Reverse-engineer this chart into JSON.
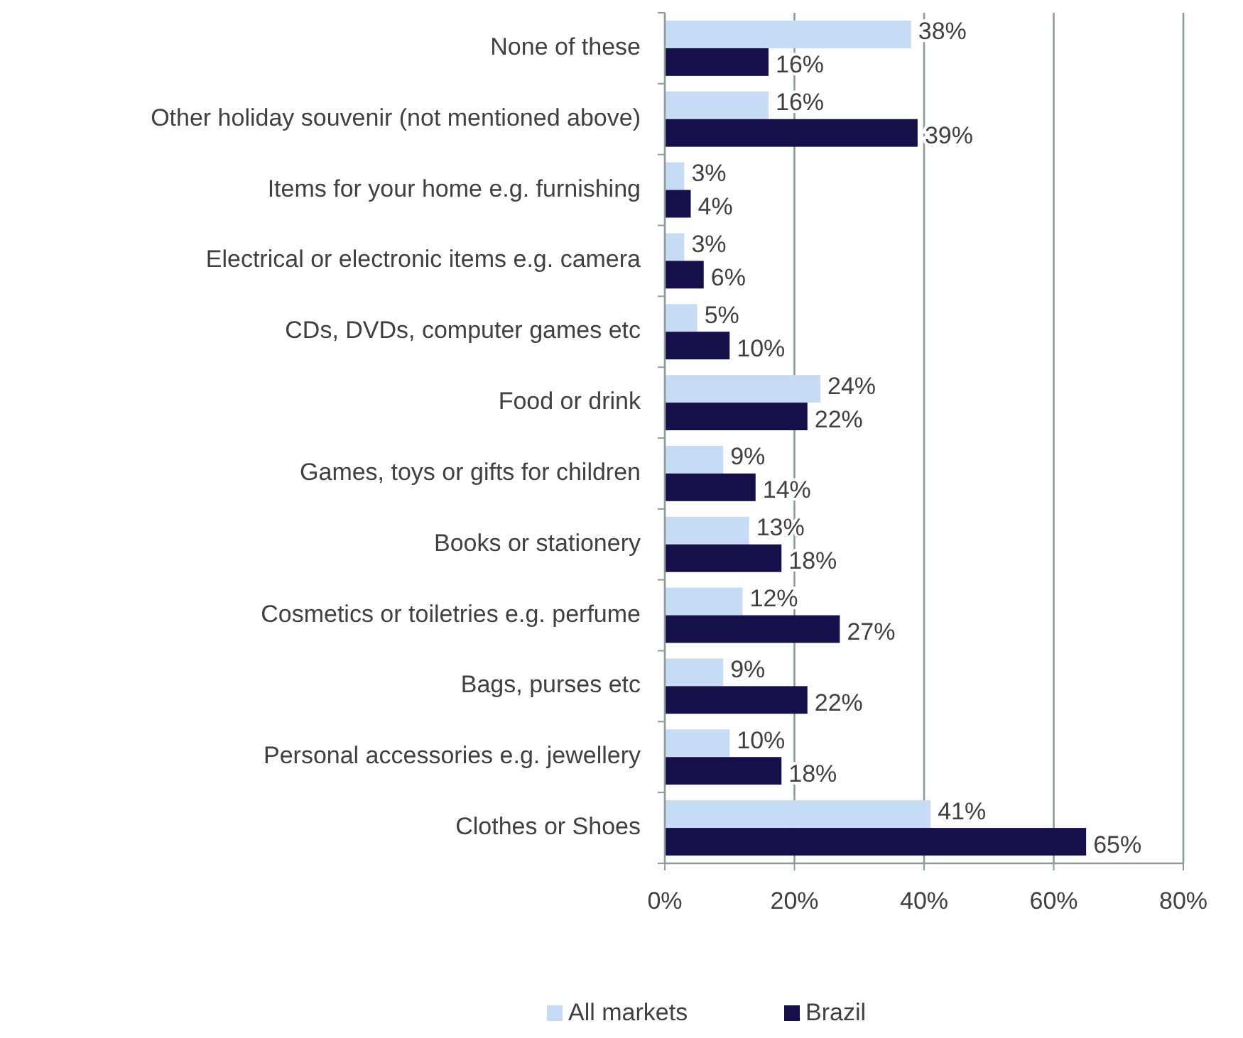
{
  "chart_data": {
    "type": "bar",
    "orientation": "horizontal",
    "categories": [
      "None of these",
      "Other holiday souvenir (not mentioned above)",
      "Items for your home e.g. furnishing",
      "Electrical or electronic items e.g. camera",
      "CDs, DVDs, computer games etc",
      "Food or drink",
      "Games, toys or gifts for children",
      "Books or stationery",
      "Cosmetics or toiletries e.g. perfume",
      "Bags, purses etc",
      "Personal accessories e.g. jewellery",
      "Clothes or Shoes"
    ],
    "series": [
      {
        "name": "All markets",
        "color": "#c6dcf5",
        "values": [
          38,
          16,
          3,
          3,
          5,
          24,
          9,
          13,
          12,
          9,
          10,
          41
        ],
        "value_labels": [
          "38%",
          "16%",
          "3%",
          "3%",
          "5%",
          "24%",
          "9%",
          "13%",
          "12%",
          "9%",
          "10%",
          "41%"
        ]
      },
      {
        "name": "Brazil",
        "color": "#15104a",
        "values": [
          16,
          39,
          4,
          6,
          10,
          22,
          14,
          18,
          27,
          22,
          18,
          65
        ],
        "value_labels": [
          "16%",
          "39%",
          "4%",
          "6%",
          "10%",
          "22%",
          "14%",
          "18%",
          "27%",
          "22%",
          "18%",
          "65%"
        ]
      }
    ],
    "xlim": [
      0,
      80
    ],
    "xticks": [
      {
        "value": 0,
        "label": "0%"
      },
      {
        "value": 20,
        "label": "20%"
      },
      {
        "value": 40,
        "label": "40%"
      },
      {
        "value": 60,
        "label": "60%"
      },
      {
        "value": 80,
        "label": "80%"
      }
    ],
    "grid": "x",
    "legend": "bottom"
  }
}
